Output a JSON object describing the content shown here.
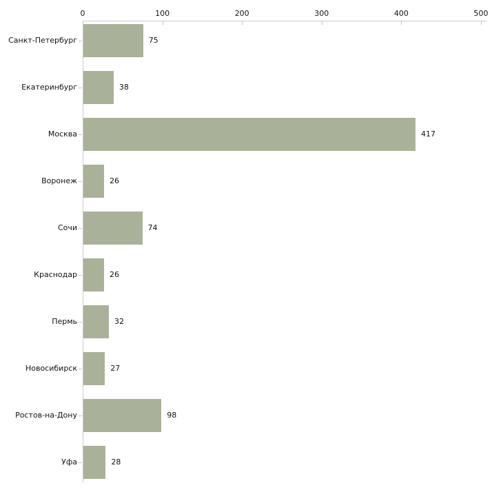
{
  "chart_data": {
    "type": "bar",
    "orientation": "horizontal",
    "title": "",
    "xlabel": "",
    "ylabel": "",
    "categories": [
      "Санкт-Петербург",
      "Екатеринбург",
      "Москва",
      "Воронеж",
      "Сочи",
      "Краснодар",
      "Пермь",
      "Новосибирск",
      "Ростов-на-Дону",
      "Уфа"
    ],
    "values": [
      75,
      38,
      417,
      26,
      74,
      26,
      32,
      27,
      98,
      28
    ],
    "x_axis": {
      "position": "top",
      "ticks": [
        0,
        100,
        200,
        300,
        400,
        500
      ],
      "xlim": [
        0,
        500
      ]
    },
    "grid": false,
    "legend": false,
    "value_labels": true,
    "colors": {
      "bar_fill": "#aab199",
      "axis_line": "#c9c9c9",
      "tick_mark": "#c6c9a3",
      "text": "#111111",
      "background": "#ffffff"
    }
  }
}
